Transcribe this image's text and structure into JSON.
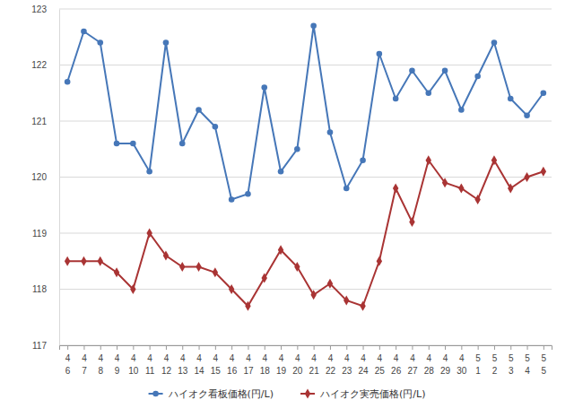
{
  "chart_data": {
    "type": "line",
    "categories": [
      "4\n6",
      "4\n7",
      "4\n8",
      "4\n9",
      "4\n10",
      "4\n11",
      "4\n12",
      "4\n13",
      "4\n14",
      "4\n15",
      "4\n16",
      "4\n17",
      "4\n18",
      "4\n19",
      "4\n20",
      "4\n21",
      "4\n22",
      "4\n23",
      "4\n24",
      "4\n25",
      "4\n26",
      "4\n27",
      "4\n28",
      "4\n29",
      "4\n30",
      "5\n1",
      "5\n2",
      "5\n3",
      "5\n4",
      "5\n5"
    ],
    "series": [
      {
        "name": "ハイオク看板価格(円/L)",
        "color": "#4677b8",
        "marker": "circle",
        "values": [
          121.7,
          122.6,
          122.4,
          120.6,
          120.6,
          120.1,
          122.4,
          120.6,
          121.2,
          120.9,
          119.6,
          119.7,
          121.6,
          120.1,
          120.5,
          122.7,
          120.8,
          119.8,
          120.3,
          122.2,
          121.4,
          121.9,
          121.5,
          121.9,
          121.2,
          121.8,
          122.4,
          121.4,
          121.1,
          121.5
        ]
      },
      {
        "name": "ハイオク実売価格(円/L)",
        "color": "#a93434",
        "marker": "diamond",
        "values": [
          118.5,
          118.5,
          118.5,
          118.3,
          118.0,
          119.0,
          118.6,
          118.4,
          118.4,
          118.3,
          118.0,
          117.7,
          118.2,
          118.7,
          118.4,
          117.9,
          118.1,
          117.8,
          117.7,
          118.5,
          119.8,
          119.2,
          120.3,
          119.9,
          119.8,
          119.6,
          120.3,
          119.8,
          120.0,
          120.1
        ]
      }
    ],
    "ylim": [
      117,
      123
    ],
    "yticks": [
      117,
      118,
      119,
      120,
      121,
      122,
      123
    ],
    "grid": true,
    "legend": "bottom"
  }
}
